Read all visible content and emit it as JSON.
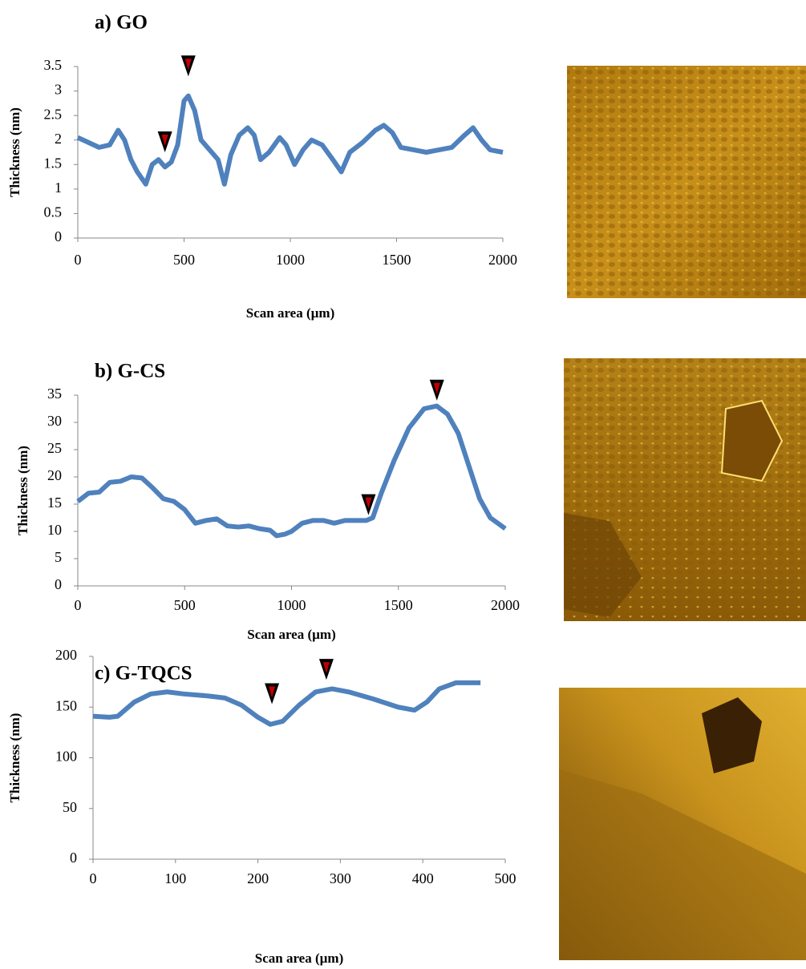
{
  "chart_data": [
    {
      "type": "line",
      "title": "a) GO",
      "x_label": "Scan area (µm)",
      "y_label": "Thickness (nm)",
      "xlim": [
        0,
        2000
      ],
      "xticks": [
        0,
        500,
        1000,
        1500,
        2000
      ],
      "ylim": [
        0,
        3.5
      ],
      "yticks": [
        0,
        0.5,
        1,
        1.5,
        2,
        2.5,
        3,
        3.5
      ],
      "grid": false,
      "color": "#4f81bd",
      "x": [
        0,
        50,
        100,
        150,
        190,
        220,
        250,
        280,
        320,
        350,
        380,
        410,
        440,
        470,
        500,
        520,
        550,
        580,
        620,
        660,
        690,
        720,
        760,
        800,
        830,
        860,
        900,
        950,
        980,
        1020,
        1060,
        1100,
        1150,
        1200,
        1240,
        1280,
        1340,
        1400,
        1440,
        1480,
        1520,
        1580,
        1640,
        1700,
        1760,
        1820,
        1860,
        1900,
        1940,
        2000
      ],
      "values": [
        2.05,
        1.95,
        1.85,
        1.9,
        2.2,
        2.0,
        1.6,
        1.35,
        1.1,
        1.5,
        1.6,
        1.45,
        1.55,
        1.9,
        2.8,
        2.9,
        2.6,
        2.0,
        1.8,
        1.6,
        1.1,
        1.7,
        2.1,
        2.25,
        2.1,
        1.6,
        1.75,
        2.05,
        1.9,
        1.5,
        1.8,
        2.0,
        1.9,
        1.6,
        1.35,
        1.75,
        1.95,
        2.2,
        2.3,
        2.15,
        1.85,
        1.8,
        1.75,
        1.8,
        1.85,
        2.1,
        2.25,
        2.0,
        1.8,
        1.75
      ],
      "markers": [
        {
          "x": 410,
          "y": 1.75
        },
        {
          "x": 520,
          "y": 3.3
        }
      ]
    },
    {
      "type": "line",
      "title": "b) G-CS",
      "x_label": "Scan area (µm)",
      "y_label": "Thickness (nm)",
      "xlim": [
        0,
        2000
      ],
      "xticks": [
        0,
        500,
        1000,
        1500,
        2000
      ],
      "ylim": [
        0,
        35
      ],
      "yticks": [
        0,
        5,
        10,
        15,
        20,
        25,
        30,
        35
      ],
      "grid": false,
      "color": "#4f81bd",
      "x": [
        0,
        50,
        100,
        150,
        200,
        250,
        300,
        350,
        400,
        450,
        500,
        550,
        600,
        650,
        700,
        750,
        800,
        850,
        900,
        930,
        970,
        1000,
        1050,
        1100,
        1150,
        1200,
        1250,
        1300,
        1350,
        1380,
        1420,
        1480,
        1550,
        1620,
        1680,
        1730,
        1780,
        1830,
        1880,
        1930,
        2000
      ],
      "values": [
        15.5,
        17,
        17.2,
        19,
        19.2,
        20,
        19.8,
        18,
        16,
        15.5,
        14,
        11.5,
        12,
        12.3,
        11,
        10.8,
        11,
        10.5,
        10.2,
        9.2,
        9.5,
        10,
        11.5,
        12,
        12,
        11.5,
        12,
        12,
        12,
        12.5,
        17,
        23,
        29,
        32.5,
        33,
        31.5,
        28,
        22,
        16,
        12.5,
        10.5
      ],
      "markers": [
        {
          "x": 1360,
          "y": 13
        },
        {
          "x": 1680,
          "y": 34
        }
      ]
    },
    {
      "type": "line",
      "title": "c) G-TQCS",
      "x_label": "Scan area (µm)",
      "y_label": "Thickness (nm)",
      "xlim": [
        0,
        500
      ],
      "xticks": [
        0,
        100,
        200,
        300,
        400,
        500
      ],
      "ylim": [
        0,
        200
      ],
      "yticks": [
        0,
        50,
        100,
        150,
        200
      ],
      "grid": false,
      "color": "#4f81bd",
      "x": [
        0,
        20,
        30,
        50,
        70,
        90,
        110,
        140,
        160,
        180,
        200,
        215,
        230,
        250,
        270,
        290,
        310,
        340,
        370,
        390,
        405,
        420,
        440,
        470
      ],
      "values": [
        141,
        140,
        141,
        155,
        163,
        165,
        163,
        161,
        159,
        152,
        140,
        133,
        136,
        152,
        165,
        168,
        165,
        158,
        150,
        147,
        155,
        168,
        174,
        174
      ],
      "markers": [
        {
          "x": 217,
          "y": 153
        },
        {
          "x": 283,
          "y": 177
        }
      ]
    }
  ]
}
